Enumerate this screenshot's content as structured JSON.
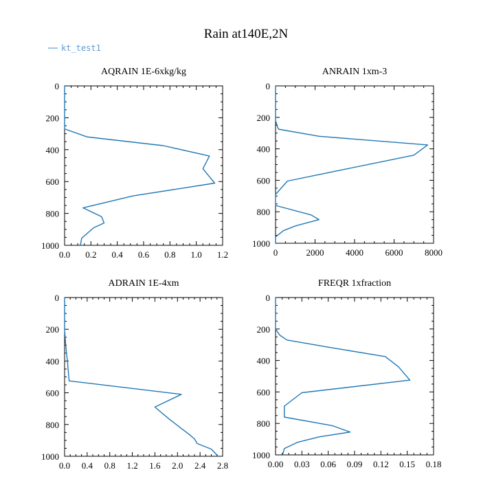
{
  "title": "Rain at140E,2N",
  "legend": {
    "label": "kt_test1",
    "color": "#5b9bd5"
  },
  "series_color": "#1f77b4",
  "chart_data": [
    {
      "type": "line",
      "title": "AQRAIN  1E-6xkg/kg",
      "xlim": [
        0.0,
        1.2
      ],
      "ylim": [
        1000,
        0
      ],
      "xticks": [
        "0.0",
        "0.2",
        "0.4",
        "0.6",
        "0.8",
        "1.0",
        "1.2"
      ],
      "yticks": [
        "0",
        "200",
        "400",
        "600",
        "800",
        "1000"
      ],
      "series": [
        {
          "x": [
            0.0,
            0.0,
            0.0,
            0.0,
            0.0,
            0.17,
            0.75,
            1.1,
            1.05,
            1.14,
            0.52,
            0.14,
            0.28,
            0.3,
            0.22,
            0.2,
            0.13,
            0.12
          ],
          "y": [
            0,
            100,
            200,
            250,
            270,
            320,
            375,
            440,
            520,
            610,
            690,
            765,
            820,
            860,
            890,
            905,
            955,
            1000
          ]
        }
      ]
    },
    {
      "type": "line",
      "title": "ANRAIN  1xm-3",
      "xlim": [
        0,
        8000
      ],
      "ylim": [
        1000,
        0
      ],
      "xticks": [
        "0",
        "2000",
        "4000",
        "6000",
        "8000"
      ],
      "yticks": [
        "0",
        "200",
        "400",
        "600",
        "800",
        "1000"
      ],
      "series": [
        {
          "x": [
            0,
            0,
            0,
            100,
            150,
            2200,
            7700,
            7000,
            3700,
            600,
            0,
            0,
            0,
            1800,
            2200,
            1000,
            400,
            0,
            0
          ],
          "y": [
            0,
            150,
            220,
            260,
            275,
            320,
            375,
            440,
            525,
            605,
            690,
            730,
            760,
            820,
            850,
            890,
            920,
            960,
            1000
          ]
        }
      ]
    },
    {
      "type": "line",
      "title": "ADRAIN  1E-4xm",
      "xlim": [
        0.0,
        2.8
      ],
      "ylim": [
        1000,
        0
      ],
      "xticks": [
        "0.0",
        "0.4",
        "0.8",
        "1.2",
        "1.6",
        "2.0",
        "2.4",
        "2.8"
      ],
      "yticks": [
        "0",
        "200",
        "400",
        "600",
        "800",
        "1000"
      ],
      "series": [
        {
          "x": [
            0.0,
            0.0,
            0.02,
            0.05,
            0.08,
            2.07,
            1.6,
            1.85,
            2.05,
            2.2,
            2.3,
            2.35,
            2.6,
            2.72
          ],
          "y": [
            0,
            200,
            300,
            400,
            525,
            610,
            690,
            765,
            820,
            860,
            890,
            920,
            955,
            1000
          ]
        }
      ]
    },
    {
      "type": "line",
      "title": "FREQR  1xfraction",
      "xlim": [
        0.0,
        0.18
      ],
      "ylim": [
        1000,
        0
      ],
      "xticks": [
        "0.00",
        "0.03",
        "0.06",
        "0.09",
        "0.12",
        "0.15",
        "0.18"
      ],
      "yticks": [
        "0",
        "200",
        "400",
        "600",
        "800",
        "1000"
      ],
      "series": [
        {
          "x": [
            0.0,
            0.0,
            0.0,
            0.005,
            0.013,
            0.065,
            0.125,
            0.14,
            0.153,
            0.03,
            0.01,
            0.01,
            0.065,
            0.085,
            0.05,
            0.025,
            0.01,
            0.008
          ],
          "y": [
            0,
            100,
            200,
            240,
            270,
            320,
            375,
            440,
            525,
            605,
            690,
            760,
            815,
            855,
            885,
            920,
            960,
            1000
          ]
        }
      ]
    }
  ]
}
